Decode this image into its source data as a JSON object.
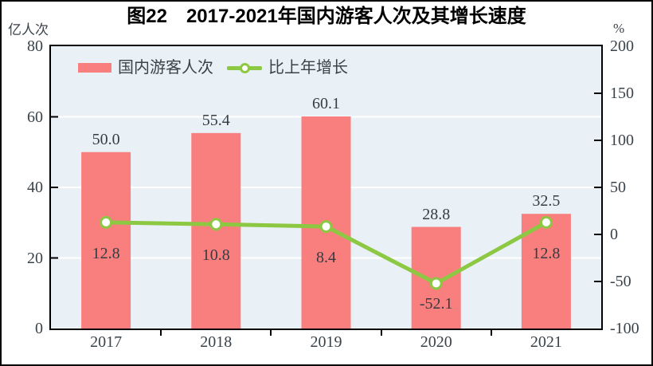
{
  "figure": {
    "title": "图22　2017-2021年国内游客人次及其增长速度"
  },
  "axes": {
    "left_unit": "亿人次",
    "right_unit": "%"
  },
  "legend": {
    "items": [
      {
        "label": "国内游客人次",
        "marker": "bar-swatch",
        "color": "#f97e7e"
      },
      {
        "label": "比上年增长",
        "marker": "line-marker",
        "color": "#8dc843"
      }
    ]
  },
  "chart_data": {
    "type": "bar+line",
    "title": "图22 2017-2021年国内游客人次及其增长速度",
    "categories": [
      "2017",
      "2018",
      "2019",
      "2020",
      "2021"
    ],
    "series": [
      {
        "name": "国内游客人次",
        "type": "bar",
        "axis": "left",
        "unit": "亿人次",
        "color": "#f97e7e",
        "values": [
          50.0,
          55.4,
          60.1,
          28.8,
          32.5
        ]
      },
      {
        "name": "比上年增长",
        "type": "line",
        "axis": "right",
        "unit": "%",
        "color": "#8dc843",
        "marker": "circle-white",
        "values": [
          12.8,
          10.8,
          8.4,
          -52.1,
          12.8
        ]
      }
    ],
    "left_axis": {
      "label": "亿人次",
      "min": 0,
      "max": 80,
      "ticks": [
        0,
        20,
        40,
        60,
        80
      ]
    },
    "right_axis": {
      "label": "%",
      "min": -100,
      "max": 200,
      "ticks": [
        -100,
        -50,
        0,
        50,
        100,
        150,
        200
      ]
    },
    "gridlines": {
      "at_left_values": [
        20,
        40,
        60
      ],
      "color": "#ffffff"
    },
    "plot_background": "#e9f1f7",
    "axis_color": "#000000",
    "legend_position": "top-left-inside",
    "value_decimals": 1,
    "bar_label_position": "above-bar",
    "line_label_position": "below-point",
    "line_label_dy": [
      28,
      28,
      28,
      15,
      28
    ]
  }
}
